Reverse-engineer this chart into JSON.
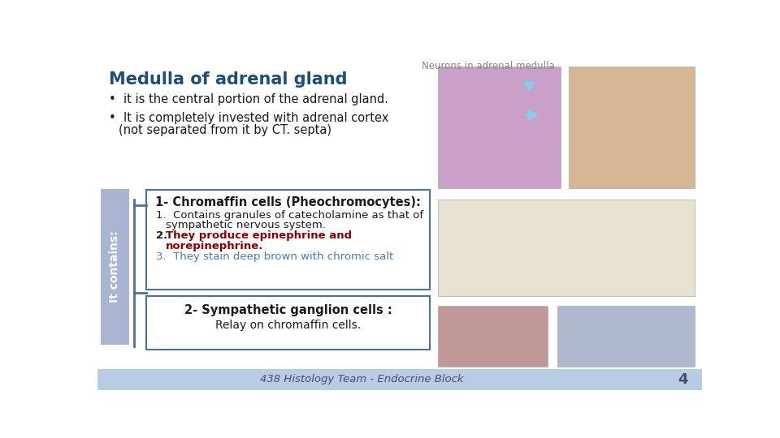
{
  "title_top": "Neurons in adrenal medulla",
  "title_main": "Medulla of adrenal gland",
  "bullet1": "it is the central portion of the adrenal gland.",
  "bullet2_line1": "It is completely invested with adrenal cortex",
  "bullet2_line2": "(not separated from it by CT. septa)",
  "sidebar_text": "It contains:",
  "box1_title": "1- Chromaffin cells (Pheochromocytes):",
  "box1_item1a": "Contains granules of catecholamine as that of",
  "box1_item1b": "sympathetic nervous system.",
  "box1_item2a": "They produce epinephrine and",
  "box1_item2b": "norepinephrine.",
  "box1_item3": "They stain deep brown with chromic salt",
  "box2_title": "2- Sympathetic ganglion cells :",
  "box2_text": "Relay on chromaffin cells.",
  "footer": "438 Histology Team - Endocrine Block",
  "page_num": "4",
  "bg_color": "#ffffff",
  "sidebar_bg": "#a8b4d0",
  "box_border": "#4a6fa0",
  "footer_bg": "#b8cce4",
  "title_color": "#1f4e79",
  "text_color": "#1a1a1a",
  "red_color": "#8b0000",
  "teal_color": "#4a7ab5",
  "footer_text_color": "#4a4a6a",
  "top_title_color": "#888888",
  "img1_color": "#c8a0c8",
  "img2_color": "#d4b896",
  "img3_color": "#e8e0d0",
  "img4_color": "#c09898",
  "img5_color": "#b0b8d0"
}
